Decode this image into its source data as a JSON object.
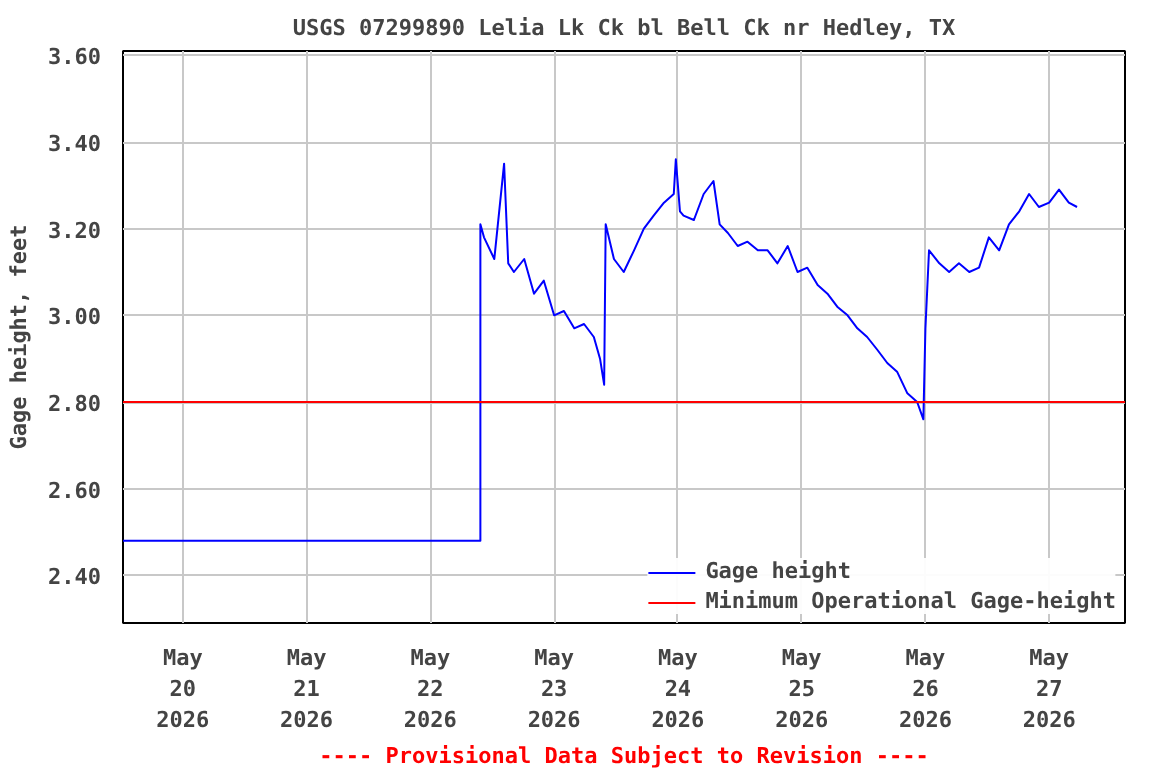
{
  "chart_data": {
    "type": "line",
    "title": "USGS 07299890 Lelia Lk Ck bl Bell Ck nr Hedley, TX",
    "ylabel": "Gage height, feet",
    "x": [
      "2026-05-19T12:24",
      "2026-05-22T09:42",
      "2026-05-22T09:42",
      "2026-05-22T10:24",
      "2026-05-22T12:24",
      "2026-05-22T14:18",
      "2026-05-22T15:06",
      "2026-05-22T16:12",
      "2026-05-22T18:12",
      "2026-05-22T20:06",
      "2026-05-22T22:00",
      "2026-05-23T00:00",
      "2026-05-23T01:54",
      "2026-05-23T03:54",
      "2026-05-23T05:48",
      "2026-05-23T07:42",
      "2026-05-23T08:54",
      "2026-05-23T09:42",
      "2026-05-23T10:00",
      "2026-05-23T11:36",
      "2026-05-23T13:30",
      "2026-05-23T15:30",
      "2026-05-23T17:24",
      "2026-05-23T19:18",
      "2026-05-23T21:18",
      "2026-05-23T23:12",
      "2026-05-23T23:36",
      "2026-05-24T00:24",
      "2026-05-24T01:06",
      "2026-05-24T03:06",
      "2026-05-24T05:00",
      "2026-05-24T06:54",
      "2026-05-24T08:06",
      "2026-05-24T09:42",
      "2026-05-24T11:36",
      "2026-05-24T13:30",
      "2026-05-24T15:30",
      "2026-05-24T17:24",
      "2026-05-24T19:18",
      "2026-05-24T21:18",
      "2026-05-24T23:12",
      "2026-05-25T01:06",
      "2026-05-25T03:06",
      "2026-05-25T05:00",
      "2026-05-25T06:54",
      "2026-05-25T08:54",
      "2026-05-25T10:48",
      "2026-05-25T12:42",
      "2026-05-25T14:42",
      "2026-05-25T16:36",
      "2026-05-25T18:30",
      "2026-05-25T20:30",
      "2026-05-25T22:24",
      "2026-05-25T23:36",
      "2026-05-26T00:00",
      "2026-05-26T00:42",
      "2026-05-26T02:42",
      "2026-05-26T04:36",
      "2026-05-26T06:30",
      "2026-05-26T08:30",
      "2026-05-26T10:24",
      "2026-05-26T12:18",
      "2026-05-26T14:18",
      "2026-05-26T16:12",
      "2026-05-26T18:12",
      "2026-05-26T20:06",
      "2026-05-26T22:00",
      "2026-05-27T00:00",
      "2026-05-27T01:54",
      "2026-05-27T03:48",
      "2026-05-27T05:24"
    ],
    "series": [
      {
        "name": "Gage height",
        "color": "#0000ff",
        "values": [
          2.48,
          2.48,
          3.21,
          3.18,
          3.13,
          3.35,
          3.12,
          3.1,
          3.13,
          3.05,
          3.08,
          3.0,
          3.01,
          2.97,
          2.98,
          2.95,
          2.9,
          2.84,
          3.21,
          3.13,
          3.1,
          3.15,
          3.2,
          3.23,
          3.26,
          3.28,
          3.36,
          3.24,
          3.23,
          3.22,
          3.28,
          3.31,
          3.21,
          3.19,
          3.16,
          3.17,
          3.15,
          3.15,
          3.12,
          3.16,
          3.1,
          3.11,
          3.07,
          3.05,
          3.02,
          3.0,
          2.97,
          2.95,
          2.92,
          2.89,
          2.87,
          2.82,
          2.8,
          2.76,
          2.97,
          3.15,
          3.12,
          3.1,
          3.12,
          3.1,
          3.11,
          3.18,
          3.15,
          3.21,
          3.24,
          3.28,
          3.25,
          3.26,
          3.29,
          3.26,
          3.25
        ]
      }
    ],
    "ref_lines": [
      {
        "axis": "y",
        "value": 2.8,
        "label": "Minimum Operational Gage-height",
        "color": "#ff0000"
      }
    ],
    "annotations": [
      "---- Provisional Data Subject to Revision ----"
    ],
    "xlim": [
      "2026-05-19T12:24",
      "2026-05-27T14:42"
    ],
    "xticks": [
      {
        "value": "2026-05-20",
        "label": "May\n20\n2026"
      },
      {
        "value": "2026-05-21",
        "label": "May\n21\n2026"
      },
      {
        "value": "2026-05-22",
        "label": "May\n22\n2026"
      },
      {
        "value": "2026-05-23",
        "label": "May\n23\n2026"
      },
      {
        "value": "2026-05-24",
        "label": "May\n24\n2026"
      },
      {
        "value": "2026-05-25",
        "label": "May\n25\n2026"
      },
      {
        "value": "2026-05-26",
        "label": "May\n26\n2026"
      },
      {
        "value": "2026-05-27",
        "label": "May\n27\n2026"
      }
    ],
    "ylim": [
      2.29,
      3.61
    ],
    "yticks": [
      {
        "value": 2.4,
        "label": "2.40"
      },
      {
        "value": 2.6,
        "label": "2.60"
      },
      {
        "value": 2.8,
        "label": "2.80"
      },
      {
        "value": 3.0,
        "label": "3.00"
      },
      {
        "value": 3.2,
        "label": "3.20"
      },
      {
        "value": 3.4,
        "label": "3.40"
      },
      {
        "value": 3.6,
        "label": "3.60"
      }
    ],
    "grid": true,
    "legend": "bottom right",
    "line_style": "solid",
    "marker": "none"
  }
}
